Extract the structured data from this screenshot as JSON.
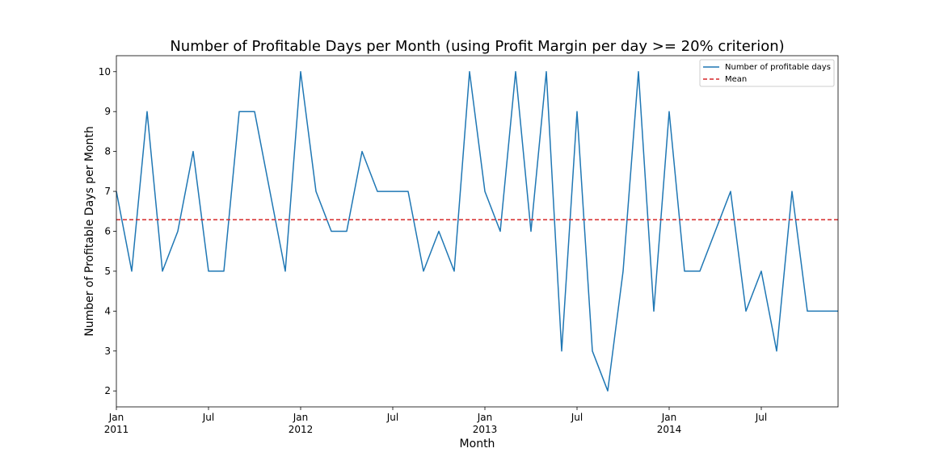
{
  "chart_data": {
    "type": "line",
    "title": "Number of Profitable Days per Month (using Profit Margin per day >= 20% criterion)",
    "xlabel": "Month",
    "ylabel": "Number of Profitable Days per Month",
    "ylim": [
      1.6,
      10.4
    ],
    "yticks": [
      2,
      3,
      4,
      5,
      6,
      7,
      8,
      9,
      10
    ],
    "x_start": "2011-01",
    "x_end": "2014-12",
    "xticks": [
      {
        "month": "2011-01",
        "label": "Jan",
        "sublabel": "2011"
      },
      {
        "month": "2011-07",
        "label": "Jul",
        "sublabel": ""
      },
      {
        "month": "2012-01",
        "label": "Jan",
        "sublabel": "2012"
      },
      {
        "month": "2012-07",
        "label": "Jul",
        "sublabel": ""
      },
      {
        "month": "2013-01",
        "label": "Jan",
        "sublabel": "2013"
      },
      {
        "month": "2013-07",
        "label": "Jul",
        "sublabel": ""
      },
      {
        "month": "2014-01",
        "label": "Jan",
        "sublabel": "2014"
      },
      {
        "month": "2014-07",
        "label": "Jul",
        "sublabel": ""
      }
    ],
    "series": [
      {
        "name": "Number of profitable days",
        "color": "#1f77b4",
        "x": [
          "2011-01",
          "2011-02",
          "2011-03",
          "2011-04",
          "2011-05",
          "2011-06",
          "2011-07",
          "2011-08",
          "2011-09",
          "2011-10",
          "2011-11",
          "2011-12",
          "2012-01",
          "2012-02",
          "2012-03",
          "2012-04",
          "2012-05",
          "2012-06",
          "2012-07",
          "2012-08",
          "2012-09",
          "2012-10",
          "2012-11",
          "2012-12",
          "2013-01",
          "2013-02",
          "2013-03",
          "2013-04",
          "2013-05",
          "2013-06",
          "2013-07",
          "2013-08",
          "2013-09",
          "2013-10",
          "2013-11",
          "2013-12",
          "2014-01",
          "2014-02",
          "2014-03",
          "2014-04",
          "2014-05",
          "2014-06",
          "2014-07",
          "2014-08",
          "2014-09",
          "2014-10",
          "2014-11",
          "2014-12"
        ],
        "values": [
          7,
          5,
          9,
          5,
          6,
          8,
          5,
          5,
          9,
          9,
          7,
          5,
          10,
          7,
          6,
          6,
          8,
          7,
          7,
          7,
          5,
          6,
          5,
          10,
          7,
          6,
          10,
          6,
          10,
          3,
          9,
          3,
          2,
          5,
          10,
          4,
          9,
          5,
          5,
          6,
          7,
          4,
          5,
          3,
          7,
          4,
          4,
          4
        ]
      }
    ],
    "mean": {
      "name": "Mean",
      "value": 6.29,
      "color": "#d62728",
      "style": "dashed"
    },
    "legend": {
      "position": "top-right",
      "entries": [
        "Number of profitable days",
        "Mean"
      ]
    },
    "grid": false
  }
}
